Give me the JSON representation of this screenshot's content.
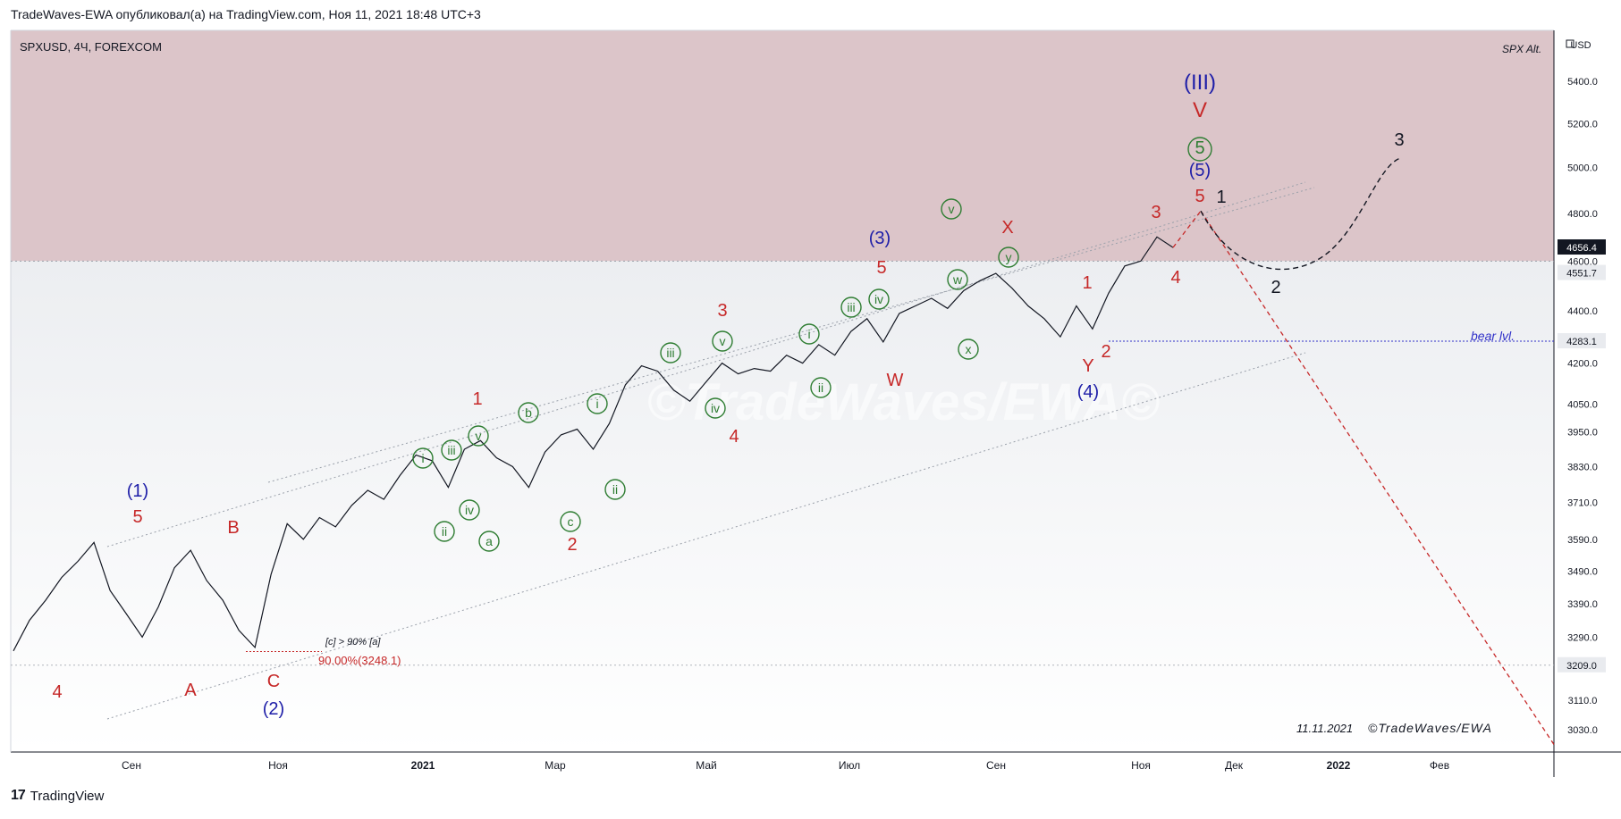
{
  "header": {
    "publish_line": "TradeWaves-EWA опубликовал(а) на TradingView.com, Ноя 11, 2021 18:48 UTC+3"
  },
  "symbol_line": "SPXUSD, 4Ч, FOREXCOM",
  "top_right_note": "SPX Alt.",
  "currency_label": "USD",
  "footer": {
    "brand": "TradingView",
    "logo_icon": "tradingview-logo-icon"
  },
  "watermark": "©TradeWaves/EWA©",
  "date_stamp": "11.11.2021",
  "copyright": "©TradeWaves/EWA",
  "fib_note": {
    "title": "[c] > 90% [a]",
    "level": "90.00%(3248.1)"
  },
  "bear_level_label": "bear lvl.",
  "colors": {
    "resistance_zone": "#dcc5c9",
    "wave_red": "#c62828",
    "wave_blue": "#1e1ea8",
    "wave_green": "#2e7d32",
    "bear_line": "#2f2fc8",
    "price_line": "#131722"
  },
  "chart_data": {
    "type": "line",
    "title": "SPXUSD, 4Ч, FOREXCOM",
    "ylabel": "USD",
    "y_axis": "log",
    "ylim": [
      2970,
      5650
    ],
    "x_ticks": [
      "Сен",
      "Ноя",
      "2021",
      "Мар",
      "Май",
      "Июл",
      "Сен",
      "Ноя",
      "Дек",
      "2022",
      "Фев"
    ],
    "y_ticks": [
      5400.0,
      5200.0,
      5000.0,
      4800.0,
      4600.0,
      4400.0,
      4200.0,
      4050.0,
      3950.0,
      3830.0,
      3710.0,
      3590.0,
      3490.0,
      3390.0,
      3290.0,
      3110.0,
      3030.0
    ],
    "price_badges": [
      {
        "value": "4656.4",
        "dark": true
      },
      {
        "value": "4551.7",
        "dark": false
      },
      {
        "value": "4283.1",
        "dark": false
      },
      {
        "value": "3209.0",
        "dark": false
      }
    ],
    "series": [
      {
        "values": [
          3250,
          3340,
          3400,
          3470,
          3520,
          3580,
          3430,
          3360,
          3290,
          3380,
          3500,
          3555,
          3460,
          3400,
          3310,
          3260,
          3480,
          3640,
          3590,
          3660,
          3630,
          3700,
          3750,
          3720,
          3800,
          3870,
          3850,
          3760,
          3890,
          3920,
          3860,
          3830,
          3760,
          3880,
          3940,
          3960,
          3890,
          3980,
          4120,
          4190,
          4170,
          4100,
          4060,
          4130,
          4200,
          4160,
          4180,
          4170,
          4230,
          4200,
          4270,
          4230,
          4320,
          4370,
          4280,
          4390,
          4420,
          4450,
          4410,
          4480,
          4520,
          4550,
          4490,
          4420,
          4370,
          4300,
          4420,
          4330,
          4470,
          4580,
          4600,
          4700,
          4656
        ]
      }
    ],
    "wave_labels": [
      {
        "text": "4",
        "color": "red"
      },
      {
        "text": "5",
        "color": "red"
      },
      {
        "text": "(1)",
        "color": "blue"
      },
      {
        "text": "A",
        "color": "red"
      },
      {
        "text": "B",
        "color": "red"
      },
      {
        "text": "C",
        "color": "red"
      },
      {
        "text": "(2)",
        "color": "blue"
      },
      {
        "text": "1",
        "color": "red"
      },
      {
        "text": "2",
        "color": "red"
      },
      {
        "text": "3",
        "color": "red"
      },
      {
        "text": "4",
        "color": "red"
      },
      {
        "text": "5",
        "color": "red"
      },
      {
        "text": "(3)",
        "color": "blue"
      },
      {
        "text": "W",
        "color": "red"
      },
      {
        "text": "X",
        "color": "red"
      },
      {
        "text": "Y",
        "color": "red"
      },
      {
        "text": "(4)",
        "color": "blue"
      },
      {
        "text": "1",
        "color": "red"
      },
      {
        "text": "2",
        "color": "red"
      },
      {
        "text": "3",
        "color": "red"
      },
      {
        "text": "4",
        "color": "red"
      },
      {
        "text": "5",
        "color": "red"
      },
      {
        "text": "(5)",
        "color": "blue"
      },
      {
        "text": "V",
        "color": "red"
      },
      {
        "text": "(III)",
        "color": "blue"
      },
      {
        "text": "1",
        "color": "black"
      },
      {
        "text": "2",
        "color": "black"
      },
      {
        "text": "3",
        "color": "black"
      }
    ],
    "circled_labels": [
      "ii",
      "iv",
      "i",
      "iii",
      "v",
      "a",
      "b",
      "c",
      "i",
      "ii",
      "iii",
      "iv",
      "v",
      "i",
      "ii",
      "iii",
      "iv",
      "v",
      "w",
      "x",
      "y",
      "5"
    ]
  }
}
